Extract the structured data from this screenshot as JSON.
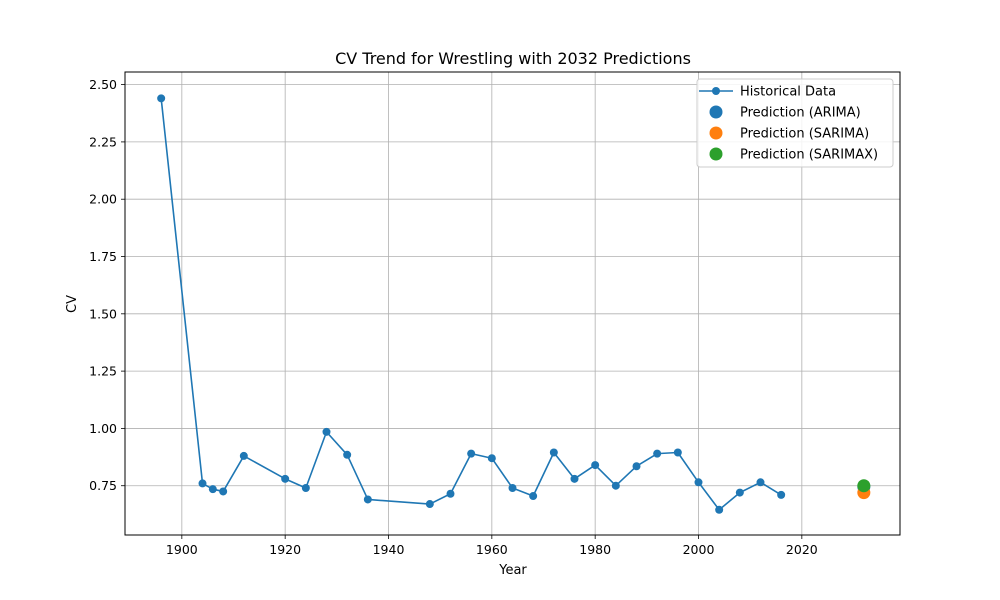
{
  "chart_data": {
    "type": "line",
    "title": "CV Trend for Wrestling with 2032 Predictions",
    "xlabel": "Year",
    "ylabel": "CV",
    "xlim": [
      1889,
      2039
    ],
    "ylim": [
      0.535,
      2.555
    ],
    "xticks": [
      1900,
      1920,
      1940,
      1960,
      1980,
      2000,
      2020
    ],
    "yticks": [
      0.75,
      1.0,
      1.25,
      1.5,
      1.75,
      2.0,
      2.25,
      2.5
    ],
    "grid": true,
    "legend_position": "top-right",
    "series": [
      {
        "name": "Historical Data",
        "color": "#1f77b4",
        "x": [
          1896,
          1904,
          1906,
          1908,
          1912,
          1920,
          1924,
          1928,
          1932,
          1936,
          1948,
          1952,
          1956,
          1960,
          1964,
          1968,
          1972,
          1976,
          1980,
          1984,
          1988,
          1992,
          1996,
          2000,
          2004,
          2008,
          2012,
          2016
        ],
        "y": [
          2.44,
          0.76,
          0.735,
          0.725,
          0.88,
          0.78,
          0.74,
          0.985,
          0.885,
          0.69,
          0.67,
          0.715,
          0.89,
          0.87,
          0.74,
          0.705,
          0.895,
          0.78,
          0.84,
          0.75,
          0.835,
          0.89,
          0.895,
          0.765,
          0.645,
          0.72,
          0.765,
          0.71
        ]
      },
      {
        "name": "Prediction (ARIMA)",
        "color": "#1f77b4",
        "x": [
          2032
        ],
        "y": [
          0.745
        ]
      },
      {
        "name": "Prediction (SARIMA)",
        "color": "#ff7f0e",
        "x": [
          2032
        ],
        "y": [
          0.72
        ]
      },
      {
        "name": "Prediction (SARIMAX)",
        "color": "#2ca02c",
        "x": [
          2032
        ],
        "y": [
          0.75
        ]
      }
    ]
  }
}
